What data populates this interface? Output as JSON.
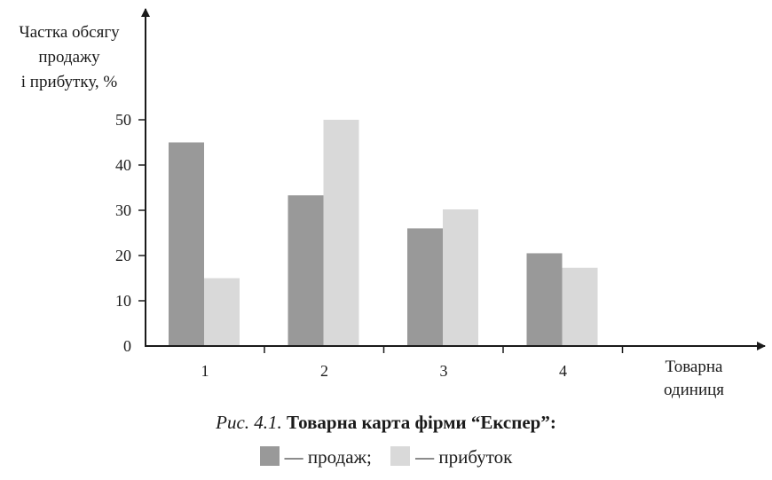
{
  "chart_data": {
    "type": "bar",
    "ylabel_lines": [
      "Частка обсягу",
      "продажу",
      "і прибутку, %"
    ],
    "xlabel_lines": [
      "Товарна",
      "одиниця"
    ],
    "categories": [
      "1",
      "2",
      "3",
      "4"
    ],
    "series": [
      {
        "name": "продаж",
        "values": [
          45,
          33.3,
          26,
          20.5
        ],
        "color": "#999999"
      },
      {
        "name": "прибуток",
        "values": [
          15,
          50,
          30.2,
          17.3
        ],
        "color": "#d9d9d9"
      }
    ],
    "ylim": [
      0,
      50
    ],
    "yticks": [
      "0",
      "10",
      "20",
      "30",
      "40",
      "50"
    ],
    "grid": false
  },
  "caption": {
    "number": "Рис. 4.1.",
    "title": "Товарна карта фірми “Експер”:"
  },
  "legend": [
    {
      "label": "— продаж;",
      "color": "#999999"
    },
    {
      "label": "— прибуток",
      "color": "#d9d9d9"
    }
  ]
}
